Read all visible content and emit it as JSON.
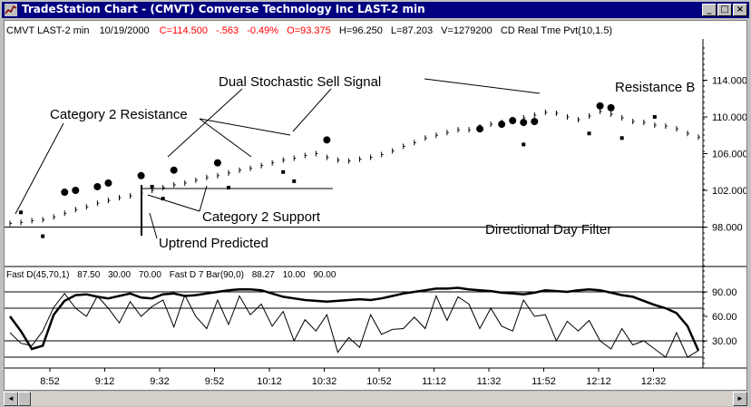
{
  "window": {
    "title": "TradeStation Chart - (CMVT) Comverse Technology Inc LAST-2 min",
    "minimize_glyph": "_",
    "maximize_glyph": "□",
    "close_glyph": "×",
    "app_icon": "chart-icon"
  },
  "header": {
    "symbol": "CMVT LAST-2 min",
    "date": "10/19/2000",
    "close": "C=114.500",
    "change": "-.563",
    "pct": "-0.49%",
    "open": "O=93.375",
    "high": "H=96.250",
    "low": "L=87.203",
    "volume": "V=1279200",
    "indicator": "CD Real Tme Pvt(10,1.5)"
  },
  "sub_header": {
    "indicator1": "Fast D(45,70,1)",
    "v1": "87.50",
    "v2": "30.00",
    "v3": "70.00",
    "indicator2": "Fast D 7 Bar(90,0)",
    "v4": "88.27",
    "v5": "10.00",
    "v6": "90.00"
  },
  "annotations": {
    "dual_stochastic": "Dual Stochastic Sell Signal",
    "cat2_resistance": "Category 2 Resistance",
    "cat2_support": "Category 2 Support",
    "uptrend": "Uptrend Predicted",
    "directional_filter": "Directional Day Filter",
    "resistance_b": "Resistance B"
  },
  "colors": {
    "title_bg": "#000080",
    "red_values": "#ff0000",
    "line": "#000000"
  },
  "chart_data": [
    {
      "type": "line",
      "y_ticks": [
        "114.000",
        "110.000",
        "106.000",
        "102.000",
        "98.000"
      ],
      "ylim": [
        94,
        118
      ],
      "x_ticks": [
        "8:52",
        "9:12",
        "9:32",
        "9:52",
        "10:12",
        "10:32",
        "10:52",
        "11:12",
        "11:32",
        "11:52",
        "12:12",
        "12:32"
      ],
      "series": [
        {
          "values": [
            98.4,
            98.5,
            98.7,
            98.8,
            99.1,
            99.5,
            99.9,
            100.2,
            100.6,
            100.9,
            101.2,
            101.4,
            101.7,
            102.0,
            102.3,
            102.6,
            102.8,
            103.1,
            103.4,
            103.6,
            103.9,
            104.2,
            104.4,
            104.7,
            105.0,
            105.3,
            105.5,
            105.8,
            106.0,
            105.6,
            105.3,
            105.2,
            105.4,
            105.6,
            105.9,
            106.3,
            106.8,
            107.2,
            107.7,
            108.0,
            108.3,
            108.6,
            108.6,
            108.9,
            109.2,
            109.4,
            109.6,
            109.9,
            110.2,
            110.5,
            110.4,
            110.0,
            109.7,
            110.1,
            110.6,
            110.3,
            109.9,
            109.5,
            109.4,
            109.1,
            109.0,
            108.7,
            108.2,
            107.8
          ]
        }
      ],
      "markers": [
        {
          "kind": "square",
          "x": 1,
          "y": 99.6
        },
        {
          "kind": "square",
          "x": 3,
          "y": 97.0
        },
        {
          "kind": "square",
          "x": 13,
          "y": 102.4
        },
        {
          "kind": "square",
          "x": 14,
          "y": 101.1
        },
        {
          "kind": "square",
          "x": 20,
          "y": 102.3
        },
        {
          "kind": "square",
          "x": 25,
          "y": 104.0
        },
        {
          "kind": "square",
          "x": 26,
          "y": 103.0
        },
        {
          "kind": "square",
          "x": 47,
          "y": 107.0
        },
        {
          "kind": "square",
          "x": 53,
          "y": 108.2
        },
        {
          "kind": "square",
          "x": 56,
          "y": 107.7
        },
        {
          "kind": "square",
          "x": 59,
          "y": 110.0
        },
        {
          "kind": "dot",
          "x": 5,
          "y": 101.8
        },
        {
          "kind": "dot",
          "x": 6,
          "y": 102.0
        },
        {
          "kind": "dot",
          "x": 8,
          "y": 102.4
        },
        {
          "kind": "dot",
          "x": 9,
          "y": 102.8
        },
        {
          "kind": "dot",
          "x": 12,
          "y": 103.6
        },
        {
          "kind": "dot",
          "x": 15,
          "y": 104.2
        },
        {
          "kind": "dot",
          "x": 19,
          "y": 105.0
        },
        {
          "kind": "dot",
          "x": 29,
          "y": 107.5
        },
        {
          "kind": "dot",
          "x": 43,
          "y": 108.7
        },
        {
          "kind": "dot",
          "x": 45,
          "y": 109.2
        },
        {
          "kind": "dot",
          "x": 46,
          "y": 109.6
        },
        {
          "kind": "dot",
          "x": 47,
          "y": 109.4
        },
        {
          "kind": "dot",
          "x": 48,
          "y": 109.5
        },
        {
          "kind": "dot",
          "x": 54,
          "y": 111.2
        },
        {
          "kind": "dot",
          "x": 55,
          "y": 111.0
        }
      ],
      "hlines": [
        98.0,
        102.2
      ]
    },
    {
      "type": "line",
      "y_ticks": [
        "90.00",
        "60.00",
        "30.00"
      ],
      "ylim": [
        0,
        100
      ],
      "series": [
        {
          "values": [
            60,
            42,
            20,
            24,
            62,
            79,
            86,
            87,
            84,
            82,
            85,
            88,
            83,
            82,
            87,
            88,
            85,
            86,
            88,
            90,
            92,
            93,
            93,
            92,
            88,
            84,
            82,
            80,
            79,
            78,
            79,
            80,
            81,
            80,
            82,
            85,
            88,
            90,
            92,
            94,
            94,
            95,
            93,
            92,
            91,
            89,
            88,
            87,
            89,
            92,
            91,
            90,
            92,
            93,
            92,
            89,
            86,
            84,
            79,
            74,
            70,
            64,
            48,
            18
          ]
        },
        {
          "values": [
            40,
            27,
            24,
            42,
            71,
            88,
            70,
            60,
            85,
            70,
            52,
            78,
            60,
            72,
            80,
            47,
            86,
            60,
            45,
            80,
            50,
            85,
            62,
            75,
            48,
            66,
            30,
            56,
            42,
            62,
            16,
            34,
            22,
            62,
            38,
            44,
            45,
            59,
            45,
            85,
            55,
            84,
            75,
            45,
            70,
            48,
            42,
            80,
            60,
            62,
            30,
            54,
            42,
            55,
            30,
            20,
            45,
            25,
            30,
            20,
            10,
            40,
            10,
            18
          ]
        }
      ],
      "hlines": [
        90,
        70,
        30,
        10
      ]
    }
  ],
  "scroll": {
    "left_glyph": "◄",
    "right_glyph": "►"
  }
}
